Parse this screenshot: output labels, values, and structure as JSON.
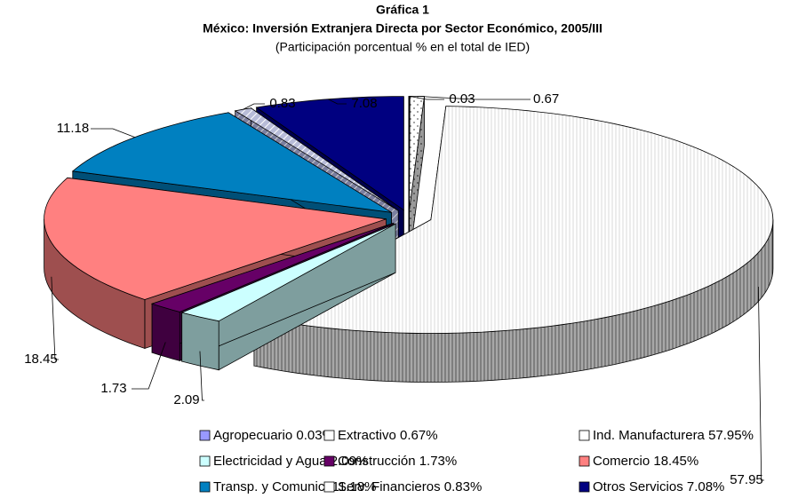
{
  "chart_data": {
    "type": "pie3d",
    "title": "Gráfica 1",
    "subtitle": "México: Inversión Extranjera Directa por Sector Económico, 2005/III",
    "note": "(Participación porcentual % en el total de IED)",
    "categories": [
      "Agropecuario 0.03%",
      "Extractivo 0.67%",
      "Ind. Manufacturera 57.95%",
      "Electricidad y Agua 2.09%",
      "Construcción 1.73%",
      "Comercio 18.45%",
      "Transp. y Comunic. 11.18%",
      "Serv. Financieros 0.83%",
      "Otros Servicios 7.08%"
    ],
    "values": [
      0.03,
      0.67,
      57.95,
      2.09,
      1.73,
      18.45,
      11.18,
      0.83,
      7.08
    ],
    "colors": [
      "#9999ff",
      "#ffffff",
      "#ffffff",
      "#ccffff",
      "#660066",
      "#ff8080",
      "#0080c0",
      "#ffffff",
      "#000080"
    ],
    "patterns": [
      null,
      "dots",
      "vertical",
      null,
      null,
      null,
      null,
      "diagonal",
      null
    ],
    "legend": "bottom"
  }
}
